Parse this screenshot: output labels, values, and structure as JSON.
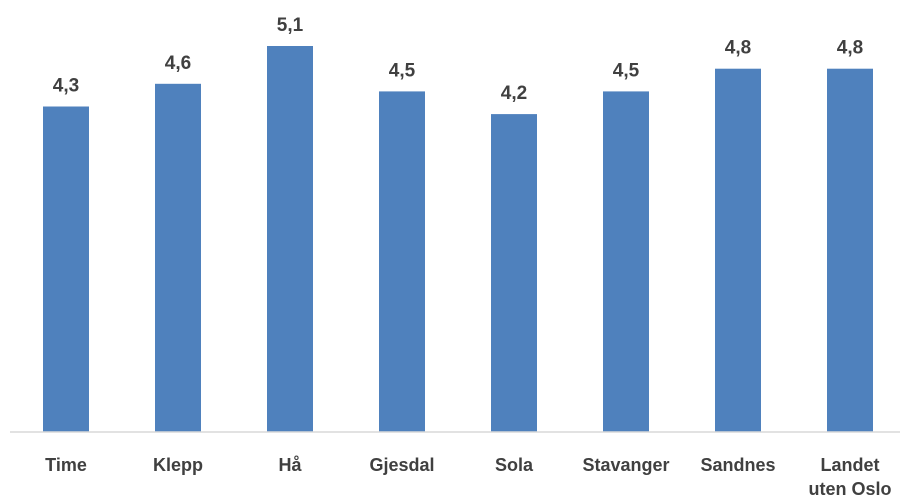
{
  "chart_data": {
    "type": "bar",
    "categories": [
      "Time",
      "Klepp",
      "Hå",
      "Gjesdal",
      "Sola",
      "Stavanger",
      "Sandnes",
      "Landet uten Oslo"
    ],
    "category_lines": [
      [
        "Time"
      ],
      [
        "Klepp"
      ],
      [
        "Hå"
      ],
      [
        "Gjesdal"
      ],
      [
        "Sola"
      ],
      [
        "Stavanger"
      ],
      [
        "Sandnes"
      ],
      [
        "Landet",
        "uten Oslo"
      ]
    ],
    "values": [
      4.3,
      4.6,
      5.1,
      4.5,
      4.2,
      4.5,
      4.8,
      4.8
    ],
    "data_labels": [
      "4,3",
      "4,6",
      "5,1",
      "4,5",
      "4,2",
      "4,5",
      "4,8",
      "4,8"
    ],
    "title": "",
    "xlabel": "",
    "ylabel": "",
    "ylim": [
      0,
      5.1
    ],
    "grid": false,
    "legend": "none",
    "bar_color": "#4f81bd",
    "label_color": "#404040",
    "axis_color": "#d9d9d9"
  }
}
